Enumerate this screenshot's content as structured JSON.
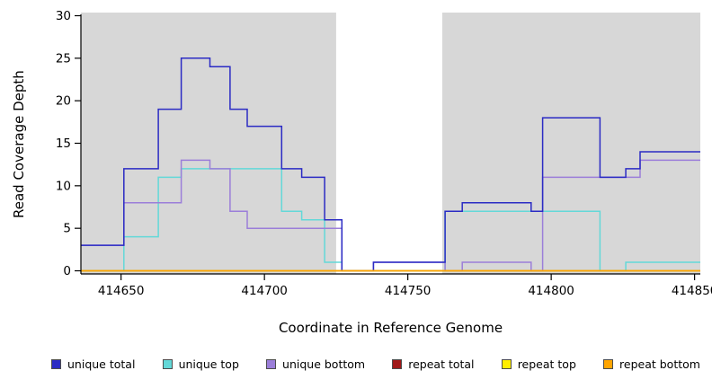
{
  "figure": {
    "xlabel": "Coordinate in Reference Genome",
    "ylabel": "Read Coverage Depth"
  },
  "chart_data": {
    "type": "line",
    "subtype": "step-coverage-plot",
    "title": "",
    "xlabel": "Coordinate in Reference Genome",
    "ylabel": "Read Coverage Depth",
    "xlim": [
      414636,
      414852
    ],
    "ylim": [
      0,
      30
    ],
    "xticks": [
      414650,
      414700,
      414750,
      414800,
      414850
    ],
    "yticks": [
      0,
      5,
      10,
      15,
      20,
      25,
      30
    ],
    "grid": false,
    "legend_position": "bottom",
    "plot_background": "#d7d7d7",
    "axis_color": "#000000",
    "masked_region": {
      "x_start": 414725,
      "x_end": 414762,
      "color": "#ffffff"
    },
    "series": [
      {
        "name": "unique total",
        "color": "#2b2bc4",
        "steps": [
          [
            414636,
            3
          ],
          [
            414651,
            12
          ],
          [
            414663,
            19
          ],
          [
            414671,
            25
          ],
          [
            414681,
            24
          ],
          [
            414688,
            19
          ],
          [
            414694,
            17
          ],
          [
            414706,
            12
          ],
          [
            414713,
            11
          ],
          [
            414721,
            6
          ],
          [
            414727,
            0
          ],
          [
            414738,
            1
          ],
          [
            414763,
            7
          ],
          [
            414769,
            8
          ],
          [
            414793,
            7
          ],
          [
            414797,
            18
          ],
          [
            414817,
            11
          ],
          [
            414826,
            12
          ],
          [
            414831,
            14
          ],
          [
            414852,
            14
          ]
        ]
      },
      {
        "name": "unique top",
        "color": "#63d8d8",
        "steps": [
          [
            414636,
            0
          ],
          [
            414651,
            4
          ],
          [
            414663,
            11
          ],
          [
            414671,
            12
          ],
          [
            414706,
            7
          ],
          [
            414713,
            6
          ],
          [
            414721,
            1
          ],
          [
            414727,
            0
          ],
          [
            414763,
            7
          ],
          [
            414817,
            0
          ],
          [
            414826,
            1
          ],
          [
            414852,
            1
          ]
        ]
      },
      {
        "name": "unique bottom",
        "color": "#9b7ed9",
        "steps": [
          [
            414636,
            3
          ],
          [
            414651,
            8
          ],
          [
            414671,
            13
          ],
          [
            414681,
            12
          ],
          [
            414688,
            7
          ],
          [
            414694,
            5
          ],
          [
            414727,
            0
          ],
          [
            414738,
            1
          ],
          [
            414763,
            0
          ],
          [
            414769,
            1
          ],
          [
            414793,
            0
          ],
          [
            414797,
            11
          ],
          [
            414831,
            13
          ],
          [
            414852,
            13
          ]
        ]
      },
      {
        "name": "repeat total",
        "color": "#a01818",
        "steps": [
          [
            414636,
            0
          ],
          [
            414852,
            0
          ]
        ]
      },
      {
        "name": "repeat top",
        "color": "#ffee00",
        "steps": [
          [
            414636,
            0
          ],
          [
            414852,
            0
          ]
        ]
      },
      {
        "name": "repeat bottom",
        "color": "#ffa500",
        "steps": [
          [
            414636,
            0
          ],
          [
            414852,
            0
          ]
        ]
      }
    ],
    "draw_order": [
      1,
      2,
      0,
      3,
      4,
      5
    ]
  }
}
